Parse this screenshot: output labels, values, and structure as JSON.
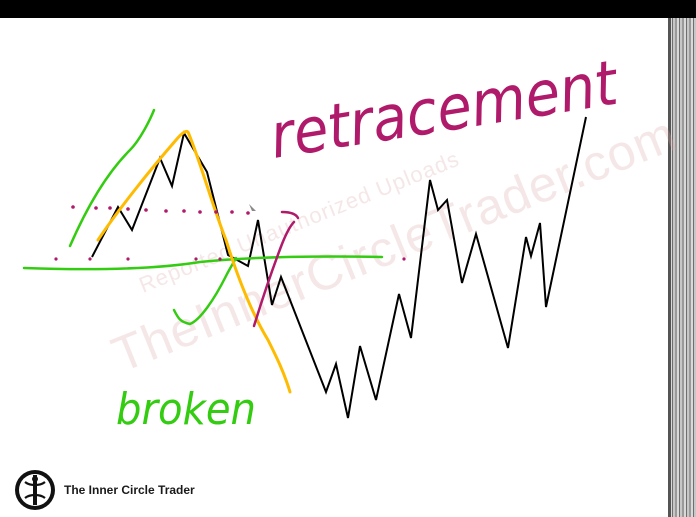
{
  "annotations": {
    "retracement": "retracement",
    "broken": "broken"
  },
  "watermark": {
    "line1": "Reported Unauthorized Uploads",
    "line2": "TheInnerCircleTrader.com"
  },
  "branding": {
    "name": "The Inner Circle Trader"
  },
  "colors": {
    "price_line": "#000000",
    "green": "#33cc11",
    "orange": "#ffbb00",
    "magenta": "#b01a6a",
    "background": "#ffffff"
  }
}
